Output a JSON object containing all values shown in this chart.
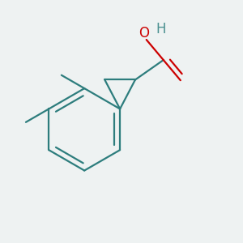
{
  "background_color": "#eef2f2",
  "bond_color": "#2d7d7d",
  "oxygen_color": "#cc0000",
  "bond_width": 1.6,
  "figsize": [
    3.0,
    3.0
  ],
  "dpi": 100
}
